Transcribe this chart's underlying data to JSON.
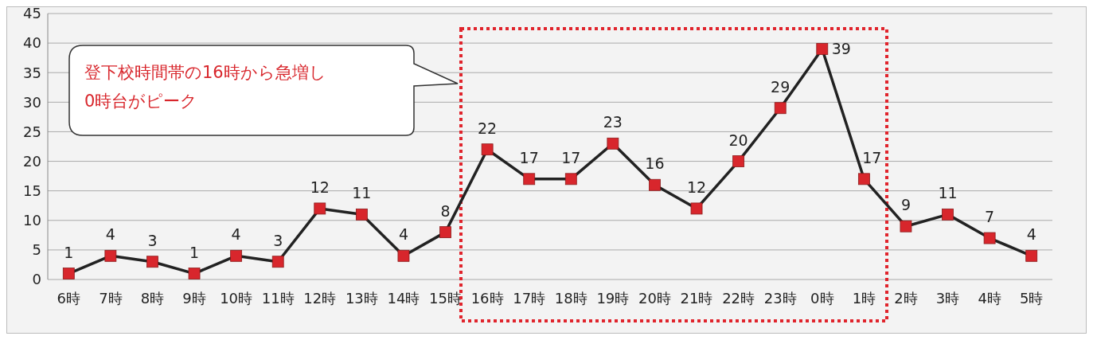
{
  "chart_data": {
    "type": "line",
    "categories": [
      "6時",
      "7時",
      "8時",
      "9時",
      "10時",
      "11時",
      "12時",
      "13時",
      "14時",
      "15時",
      "16時",
      "17時",
      "18時",
      "19時",
      "20時",
      "21時",
      "22時",
      "23時",
      "0時",
      "1時",
      "2時",
      "3時",
      "4時",
      "5時"
    ],
    "series": [
      {
        "color": "#222222",
        "values": [
          1,
          4,
          3,
          1,
          4,
          3,
          12,
          11,
          4,
          8,
          22,
          17,
          17,
          23,
          16,
          12,
          20,
          29,
          39,
          17,
          9,
          11,
          7,
          4
        ]
      }
    ],
    "ylim": [
      0,
      45
    ],
    "yticks": [
      0,
      5,
      10,
      15,
      20,
      25,
      30,
      35,
      40,
      45
    ],
    "grid": "y",
    "marker": "square",
    "line_style": "solid",
    "data_labels": true,
    "annotations": [
      "登下校時間帯の16時から急増し\n0時台がピーク"
    ]
  }
}
